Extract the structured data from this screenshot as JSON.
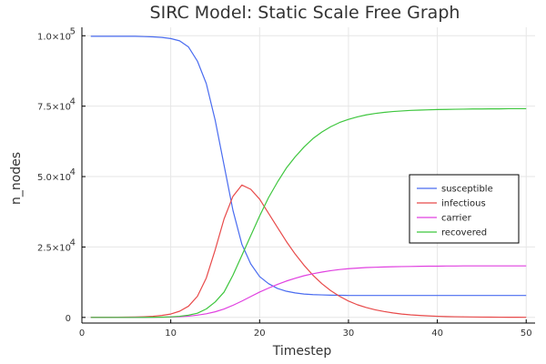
{
  "chart_data": {
    "type": "line",
    "title": "SIRC Model: Static Scale Free Graph",
    "xlabel": "Timestep",
    "ylabel": "n_nodes",
    "xlim": [
      0,
      51
    ],
    "ylim": [
      -2000,
      103000
    ],
    "x_ticks": [
      0,
      10,
      20,
      30,
      40,
      50
    ],
    "y_ticks": [
      {
        "value": 0,
        "mantissa": "0",
        "exponent": ""
      },
      {
        "value": 25000,
        "mantissa": "2.5×10",
        "exponent": "4"
      },
      {
        "value": 50000,
        "mantissa": "5.0×10",
        "exponent": "4"
      },
      {
        "value": 75000,
        "mantissa": "7.5×10",
        "exponent": "4"
      },
      {
        "value": 100000,
        "mantissa": "1.0×10",
        "exponent": "5"
      }
    ],
    "grid": true,
    "legend_position": "right",
    "x": [
      1,
      2,
      3,
      4,
      5,
      6,
      7,
      8,
      9,
      10,
      11,
      12,
      13,
      14,
      15,
      16,
      17,
      18,
      19,
      20,
      21,
      22,
      23,
      24,
      25,
      26,
      27,
      28,
      29,
      30,
      31,
      32,
      33,
      34,
      35,
      36,
      37,
      38,
      39,
      40,
      41,
      42,
      43,
      44,
      45,
      46,
      47,
      48,
      49,
      50
    ],
    "series": [
      {
        "name": "susceptible",
        "color": "#4a6cf0",
        "values": [
          99800,
          99800,
          99800,
          99800,
          99800,
          99800,
          99700,
          99600,
          99400,
          99000,
          98200,
          96000,
          91000,
          83000,
          70000,
          54000,
          38000,
          26000,
          19000,
          14500,
          12000,
          10300,
          9300,
          8700,
          8300,
          8100,
          8000,
          7900,
          7850,
          7800,
          7800,
          7800,
          7800,
          7800,
          7800,
          7800,
          7800,
          7800,
          7800,
          7800,
          7800,
          7800,
          7800,
          7800,
          7800,
          7800,
          7800,
          7800,
          7800,
          7800
        ]
      },
      {
        "name": "infectious",
        "color": "#e84a4a",
        "values": [
          50,
          50,
          60,
          80,
          100,
          150,
          250,
          400,
          700,
          1200,
          2200,
          4000,
          7500,
          14000,
          24000,
          35000,
          43000,
          47000,
          45500,
          42000,
          37000,
          32000,
          27000,
          22500,
          18500,
          15000,
          12000,
          9500,
          7500,
          5800,
          4500,
          3500,
          2700,
          2100,
          1600,
          1200,
          900,
          700,
          550,
          400,
          300,
          250,
          200,
          160,
          120,
          100,
          80,
          60,
          50,
          40
        ]
      },
      {
        "name": "carrier",
        "color": "#e040e0",
        "values": [
          0,
          0,
          0,
          0,
          0,
          10,
          20,
          40,
          80,
          150,
          250,
          450,
          800,
          1300,
          2000,
          3000,
          4300,
          5800,
          7400,
          9000,
          10400,
          11700,
          12900,
          13900,
          14800,
          15500,
          16100,
          16600,
          17000,
          17300,
          17500,
          17700,
          17800,
          17900,
          18000,
          18050,
          18100,
          18150,
          18200,
          18200,
          18250,
          18250,
          18300,
          18300,
          18300,
          18300,
          18300,
          18300,
          18300,
          18300
        ]
      },
      {
        "name": "recovered",
        "color": "#3ec63e",
        "values": [
          0,
          0,
          0,
          0,
          0,
          0,
          20,
          50,
          100,
          200,
          400,
          800,
          1500,
          3000,
          5500,
          9000,
          15000,
          22000,
          29000,
          36000,
          42500,
          48000,
          53000,
          57000,
          60500,
          63500,
          65800,
          67700,
          69200,
          70300,
          71200,
          71900,
          72400,
          72800,
          73100,
          73300,
          73500,
          73600,
          73700,
          73800,
          73850,
          73900,
          73950,
          74000,
          74000,
          74050,
          74050,
          74100,
          74100,
          74100
        ]
      }
    ]
  }
}
